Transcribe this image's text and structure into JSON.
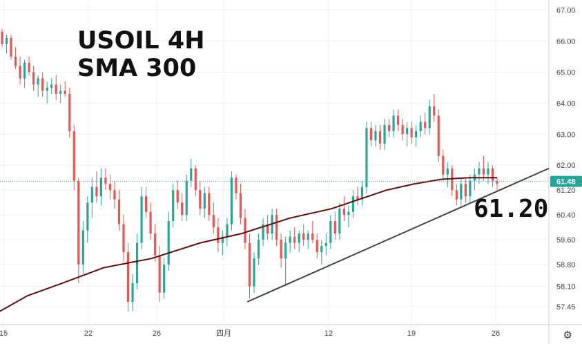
{
  "annotations": {
    "title_line1": "USOIL 4H",
    "title_line2": "SMA 300",
    "level_label": "61.20"
  },
  "icons": {
    "settings": "gear-icon"
  },
  "colors": {
    "up": "#26a69a",
    "down": "#ef5350",
    "sma": "#5b0f0f",
    "trendline": "#444444",
    "price_line": "#26a69a",
    "last_price_bg": "#26a69a"
  },
  "chart_data": {
    "type": "candlestick",
    "ylim": [
      57.2,
      67.1
    ],
    "y_ticks": [
      "67.00",
      "66.00",
      "65.00",
      "64.00",
      "63.00",
      "62.00",
      "61.20",
      "60.40",
      "59.60",
      "58.80",
      "58.10",
      "57.45"
    ],
    "x_tick_labels": [
      "15",
      "22",
      "26",
      "四月",
      "12",
      "19",
      "26"
    ],
    "last_price": "61.48",
    "current_price": 61.48,
    "sma_period": 300,
    "sma_points": [
      [
        0,
        57.3
      ],
      [
        40,
        57.8
      ],
      [
        90,
        58.2
      ],
      [
        150,
        58.7
      ],
      [
        220,
        59.0
      ],
      [
        290,
        59.5
      ],
      [
        350,
        59.8
      ],
      [
        420,
        60.3
      ],
      [
        480,
        60.6
      ],
      [
        520,
        60.9
      ],
      [
        560,
        61.2
      ],
      [
        600,
        61.4
      ],
      [
        640,
        61.55
      ],
      [
        680,
        61.6
      ],
      [
        720,
        61.6
      ]
    ],
    "trendline": [
      [
        358,
        57.6
      ],
      [
        795,
        61.9
      ]
    ],
    "level": 61.2,
    "candles": [
      [
        66.3,
        66.4,
        65.8,
        65.9
      ],
      [
        65.9,
        66.2,
        65.6,
        66.1
      ],
      [
        66.1,
        66.2,
        65.4,
        65.5
      ],
      [
        65.5,
        65.8,
        65.1,
        65.2
      ],
      [
        65.2,
        65.5,
        64.6,
        64.8
      ],
      [
        64.8,
        65.4,
        64.5,
        65.3
      ],
      [
        65.3,
        65.5,
        64.9,
        65.0
      ],
      [
        65.0,
        65.2,
        64.4,
        64.6
      ],
      [
        64.6,
        64.9,
        64.2,
        64.8
      ],
      [
        64.8,
        65.0,
        64.2,
        64.4
      ],
      [
        64.4,
        64.7,
        64.0,
        64.5
      ],
      [
        64.5,
        64.8,
        64.3,
        64.6
      ],
      [
        64.6,
        64.9,
        64.1,
        64.3
      ],
      [
        64.3,
        64.6,
        64.0,
        64.4
      ],
      [
        64.4,
        64.7,
        64.2,
        64.3
      ],
      [
        64.3,
        64.5,
        62.9,
        63.1
      ],
      [
        63.1,
        63.3,
        61.2,
        61.5
      ],
      [
        61.5,
        61.6,
        58.2,
        58.8
      ],
      [
        58.8,
        60.2,
        58.5,
        59.9
      ],
      [
        59.9,
        61.0,
        59.5,
        60.8
      ],
      [
        60.8,
        61.6,
        60.3,
        61.3
      ],
      [
        61.3,
        61.8,
        60.8,
        61.0
      ],
      [
        61.0,
        61.9,
        60.7,
        61.6
      ],
      [
        61.6,
        61.9,
        61.2,
        61.4
      ],
      [
        61.4,
        61.7,
        60.9,
        61.2
      ],
      [
        61.2,
        61.5,
        60.6,
        60.9
      ],
      [
        60.9,
        61.2,
        59.9,
        60.1
      ],
      [
        60.1,
        60.4,
        58.9,
        59.2
      ],
      [
        59.2,
        59.5,
        57.3,
        57.6
      ],
      [
        57.6,
        58.5,
        57.3,
        58.2
      ],
      [
        58.2,
        59.8,
        58.0,
        59.5
      ],
      [
        59.5,
        61.3,
        59.3,
        61.0
      ],
      [
        61.0,
        61.3,
        60.3,
        60.5
      ],
      [
        60.5,
        60.8,
        59.6,
        59.8
      ],
      [
        59.8,
        60.1,
        58.9,
        59.1
      ],
      [
        59.1,
        59.4,
        57.6,
        57.9
      ],
      [
        57.9,
        59.0,
        57.7,
        58.8
      ],
      [
        58.8,
        60.5,
        58.6,
        60.2
      ],
      [
        60.2,
        61.4,
        60.0,
        61.2
      ],
      [
        61.2,
        61.5,
        60.6,
        60.8
      ],
      [
        60.8,
        61.1,
        60.2,
        60.4
      ],
      [
        60.4,
        61.7,
        60.2,
        61.5
      ],
      [
        61.5,
        62.2,
        61.3,
        61.9
      ],
      [
        61.9,
        62.0,
        61.0,
        61.2
      ],
      [
        61.2,
        61.5,
        60.4,
        60.6
      ],
      [
        60.6,
        61.3,
        60.3,
        61.1
      ],
      [
        61.1,
        61.3,
        60.2,
        60.4
      ],
      [
        60.4,
        60.8,
        59.8,
        60.0
      ],
      [
        60.0,
        60.3,
        59.2,
        59.5
      ],
      [
        59.5,
        59.9,
        59.1,
        59.7
      ],
      [
        59.7,
        60.3,
        59.4,
        60.1
      ],
      [
        60.1,
        61.8,
        59.9,
        61.6
      ],
      [
        61.6,
        61.7,
        60.9,
        61.1
      ],
      [
        61.1,
        61.4,
        60.1,
        60.3
      ],
      [
        60.3,
        60.6,
        59.3,
        59.5
      ],
      [
        59.5,
        59.8,
        57.7,
        58.1
      ],
      [
        58.1,
        59.2,
        57.9,
        59.0
      ],
      [
        59.0,
        59.8,
        58.8,
        59.6
      ],
      [
        59.6,
        60.3,
        59.4,
        60.1
      ],
      [
        60.1,
        60.4,
        59.6,
        59.8
      ],
      [
        59.8,
        60.6,
        59.6,
        60.4
      ],
      [
        60.4,
        60.6,
        59.4,
        59.6
      ],
      [
        59.6,
        59.8,
        58.7,
        59.0
      ],
      [
        59.0,
        59.7,
        58.1,
        59.5
      ],
      [
        59.5,
        59.9,
        59.2,
        59.7
      ],
      [
        59.7,
        60.0,
        59.3,
        59.5
      ],
      [
        59.5,
        59.9,
        59.2,
        59.8
      ],
      [
        59.8,
        60.1,
        59.4,
        59.6
      ],
      [
        59.6,
        59.9,
        59.3,
        59.8
      ],
      [
        59.8,
        60.2,
        59.5,
        59.6
      ],
      [
        59.6,
        59.8,
        59.0,
        59.2
      ],
      [
        59.2,
        59.6,
        58.8,
        59.4
      ],
      [
        59.4,
        59.8,
        59.1,
        59.5
      ],
      [
        59.5,
        60.4,
        59.3,
        60.2
      ],
      [
        60.2,
        60.5,
        59.6,
        59.8
      ],
      [
        59.8,
        60.8,
        59.6,
        60.6
      ],
      [
        60.6,
        61.0,
        60.2,
        60.4
      ],
      [
        60.4,
        60.7,
        60.0,
        60.5
      ],
      [
        60.5,
        61.2,
        60.3,
        61.0
      ],
      [
        61.0,
        61.3,
        60.7,
        60.9
      ],
      [
        60.9,
        61.5,
        60.7,
        61.3
      ],
      [
        61.3,
        63.4,
        61.1,
        63.2
      ],
      [
        63.2,
        63.4,
        62.6,
        62.8
      ],
      [
        62.8,
        63.3,
        62.6,
        63.1
      ],
      [
        63.1,
        63.3,
        62.5,
        62.7
      ],
      [
        62.7,
        63.5,
        62.5,
        63.3
      ],
      [
        63.3,
        63.5,
        62.9,
        63.1
      ],
      [
        63.1,
        63.8,
        62.9,
        63.6
      ],
      [
        63.6,
        63.8,
        63.1,
        63.3
      ],
      [
        63.3,
        63.5,
        62.8,
        63.0
      ],
      [
        63.0,
        63.4,
        62.6,
        63.2
      ],
      [
        63.2,
        63.4,
        62.7,
        62.9
      ],
      [
        62.9,
        63.3,
        62.6,
        63.1
      ],
      [
        63.1,
        63.6,
        62.9,
        63.4
      ],
      [
        63.4,
        63.7,
        63.0,
        63.2
      ],
      [
        63.2,
        64.1,
        63.0,
        63.9
      ],
      [
        63.9,
        64.3,
        63.4,
        63.6
      ],
      [
        63.6,
        63.8,
        62.1,
        62.3
      ],
      [
        62.3,
        62.5,
        61.5,
        61.7
      ],
      [
        61.7,
        62.1,
        61.3,
        61.9
      ],
      [
        61.9,
        62.0,
        61.0,
        61.2
      ],
      [
        61.2,
        61.4,
        60.7,
        60.9
      ],
      [
        60.9,
        61.6,
        60.7,
        61.4
      ],
      [
        61.4,
        61.6,
        60.8,
        61.0
      ],
      [
        61.0,
        61.7,
        60.8,
        61.5
      ],
      [
        61.5,
        61.9,
        61.2,
        61.7
      ],
      [
        61.7,
        62.1,
        61.4,
        61.9
      ],
      [
        61.9,
        62.3,
        61.5,
        61.7
      ],
      [
        61.7,
        62.1,
        61.4,
        61.9
      ],
      [
        61.9,
        62.0,
        61.3,
        61.5
      ],
      [
        61.5,
        61.6,
        61.2,
        61.4
      ]
    ]
  }
}
